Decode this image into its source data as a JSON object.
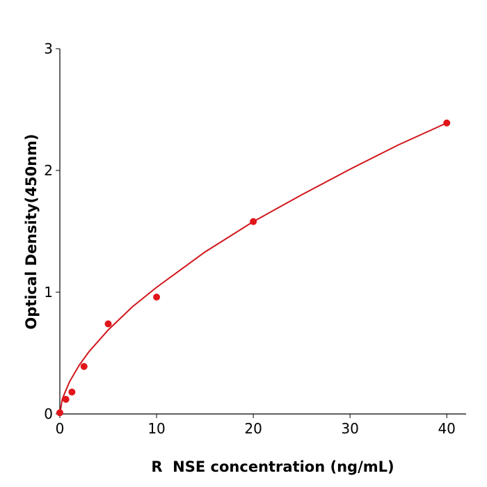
{
  "chart_data": {
    "type": "scatter",
    "xlabel": "R  NSE concentration (ng/mL)",
    "ylabel": "Optical Density(450nm)",
    "points": {
      "color": "#e0161b",
      "x": [
        0,
        0.625,
        1.25,
        2.5,
        5,
        10,
        20,
        40
      ],
      "values": [
        0.01,
        0.12,
        0.18,
        0.39,
        0.74,
        0.96,
        1.58,
        2.39
      ]
    },
    "fit": {
      "color": "#d0161b",
      "x": [
        0,
        0.25,
        0.5,
        1,
        2,
        3,
        5,
        7.5,
        10,
        15,
        20,
        25,
        30,
        35,
        40
      ],
      "values": [
        0,
        0.12,
        0.17,
        0.264,
        0.4,
        0.51,
        0.69,
        0.88,
        1.04,
        1.33,
        1.58,
        1.8,
        2.01,
        2.21,
        2.39
      ]
    },
    "xlim": [
      0,
      42
    ],
    "ylim": [
      0,
      3
    ],
    "xticks": [
      0,
      10,
      20,
      30,
      40
    ],
    "yticks": [
      0,
      1,
      2,
      3
    ]
  }
}
